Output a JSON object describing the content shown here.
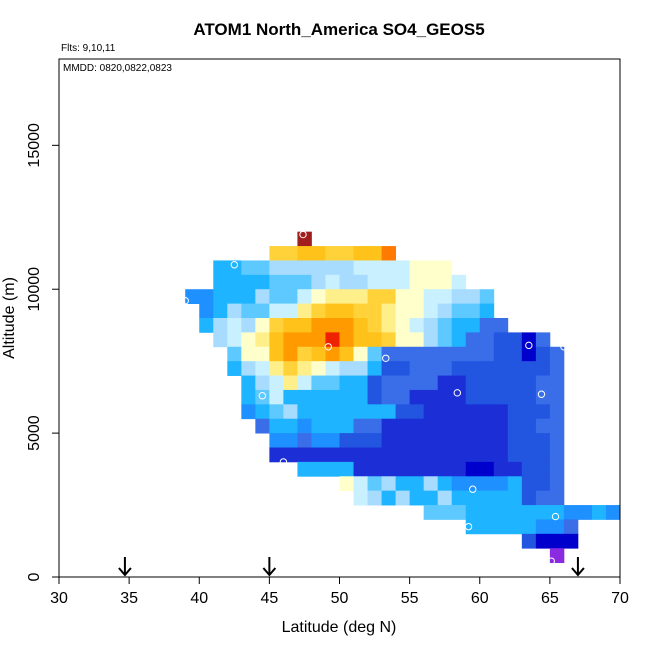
{
  "chart_data": {
    "type": "heatmap",
    "title": "ATOM1 North_America SO4_GEOS5",
    "subtitle_flights": "Flts: 9,10,11",
    "subtitle_dates": "MMDD: 0820,0822,0823",
    "xlabel": "Latitude (deg N)",
    "ylabel": "Altitude (m)",
    "xlim": [
      30,
      70
    ],
    "ylim": [
      0,
      18000
    ],
    "x_ticks": [
      30,
      35,
      40,
      45,
      50,
      55,
      60,
      65,
      70
    ],
    "x_tick_labels": [
      "30",
      "35",
      "40",
      "45",
      "50",
      "55",
      "60",
      "65",
      "70"
    ],
    "y_ticks": [
      0,
      5000,
      10000,
      15000
    ],
    "y_tick_labels": [
      "0",
      "5000",
      "10000",
      "15000"
    ],
    "cell_size": {
      "lat": 1,
      "alt": 500
    },
    "arrows_lat": [
      34.7,
      45.0,
      67.0
    ],
    "palette": {
      "purple": "#8a2be2",
      "navy": "#0000cd",
      "darkblue": "#1c2fd6",
      "blue": "#2255e0",
      "royal": "#3a6ee8",
      "azure": "#1e90ff",
      "sky": "#1eb4ff",
      "light": "#5ec9ff",
      "pale": "#a8dcff",
      "cyan": "#c8f0ff",
      "cream": "#ffffcc",
      "lyellow": "#ffef8a",
      "yellow": "#ffd23a",
      "gold": "#ffc21a",
      "orange": "#ff9a00",
      "dorange": "#ff7a00",
      "red": "#ee2200",
      "maroon": "#a01e1e"
    },
    "cells": [
      {
        "alt": 11500,
        "lat0": 47,
        "colors": [
          "maroon"
        ]
      },
      {
        "alt": 11000,
        "lat0": 45,
        "colors": [
          "yellow",
          "yellow",
          "gold",
          "gold",
          "yellow",
          "yellow",
          "gold",
          "gold",
          "dorange"
        ]
      },
      {
        "alt": 10500,
        "lat0": 41,
        "colors": [
          "sky",
          "sky",
          "light",
          "light",
          "pale",
          "pale",
          "pale",
          "pale",
          "pale",
          "pale",
          "cyan",
          "cyan",
          "cyan",
          "cyan",
          "cream",
          "cream",
          "cream"
        ]
      },
      {
        "alt": 10000,
        "lat0": 41,
        "colors": [
          "sky",
          "sky",
          "sky",
          "sky",
          "light",
          "light",
          "light",
          "pale",
          "cyan",
          "pale",
          "pale",
          "cyan",
          "cyan",
          "cyan",
          "cream",
          "cream",
          "cream",
          "cyan"
        ]
      },
      {
        "alt": 9500,
        "lat0": 39,
        "colors": [
          "azure",
          "azure",
          "sky",
          "sky",
          "sky",
          "pale",
          "light",
          "light",
          "cyan",
          "cream",
          "lyellow",
          "lyellow",
          "lyellow",
          "yellow",
          "yellow",
          "cream",
          "cream",
          "cyan",
          "cyan",
          "pale",
          "pale",
          "light"
        ]
      },
      {
        "alt": 9000,
        "lat0": 40,
        "colors": [
          "azure",
          "sky",
          "pale",
          "light",
          "light",
          "cyan",
          "cyan",
          "lyellow",
          "yellow",
          "gold",
          "gold",
          "yellow",
          "yellow",
          "lyellow",
          "cream",
          "cream",
          "cyan",
          "pale",
          "light",
          "light",
          "sky"
        ]
      },
      {
        "alt": 8500,
        "lat0": 40,
        "colors": [
          "sky",
          "pale",
          "cyan",
          "pale",
          "cream",
          "yellow",
          "gold",
          "gold",
          "orange",
          "orange",
          "orange",
          "gold",
          "yellow",
          "lyellow",
          "cream",
          "cyan",
          "pale",
          "light",
          "sky",
          "sky",
          "royal",
          "royal"
        ]
      },
      {
        "alt": 8000,
        "lat0": 41,
        "colors": [
          "pale",
          "cyan",
          "cream",
          "lyellow",
          "gold",
          "orange",
          "orange",
          "orange",
          "red",
          "orange",
          "gold",
          "gold",
          "yellow",
          "cream",
          "cream",
          "pale",
          "light",
          "sky",
          "royal",
          "royal",
          "blue",
          "blue",
          "navy",
          "royal"
        ]
      },
      {
        "alt": 7500,
        "lat0": 42,
        "colors": [
          "light",
          "cream",
          "cream",
          "gold",
          "orange",
          "yellow",
          "gold",
          "orange",
          "gold",
          "cream",
          "light",
          "royal",
          "royal",
          "royal",
          "royal",
          "royal",
          "royal",
          "royal",
          "royal",
          "blue",
          "blue",
          "navy",
          "blue",
          "royal"
        ]
      },
      {
        "alt": 7000,
        "lat0": 42,
        "colors": [
          "sky",
          "pale",
          "cyan",
          "lyellow",
          "yellow",
          "lyellow",
          "cream",
          "cyan",
          "pale",
          "pale",
          "sky",
          "blue",
          "blue",
          "royal",
          "royal",
          "royal",
          "blue",
          "blue",
          "blue",
          "blue",
          "blue",
          "blue",
          "blue",
          "royal"
        ]
      },
      {
        "alt": 6500,
        "lat0": 43,
        "colors": [
          "sky",
          "pale",
          "cyan",
          "lyellow",
          "cyan",
          "light",
          "light",
          "sky",
          "sky",
          "blue",
          "royal",
          "royal",
          "royal",
          "royal",
          "darkblue",
          "darkblue",
          "blue",
          "blue",
          "blue",
          "blue",
          "blue",
          "royal",
          "royal"
        ]
      },
      {
        "alt": 6000,
        "lat0": 43,
        "colors": [
          "sky",
          "light",
          "cyan",
          "sky",
          "sky",
          "sky",
          "sky",
          "sky",
          "sky",
          "blue",
          "royal",
          "royal",
          "darkblue",
          "darkblue",
          "darkblue",
          "darkblue",
          "blue",
          "blue",
          "blue",
          "blue",
          "blue",
          "royal",
          "royal"
        ]
      },
      {
        "alt": 5500,
        "lat0": 43,
        "colors": [
          "azure",
          "sky",
          "light",
          "pale",
          "sky",
          "sky",
          "sky",
          "sky",
          "sky",
          "sky",
          "sky",
          "blue",
          "blue",
          "darkblue",
          "darkblue",
          "darkblue",
          "darkblue",
          "darkblue",
          "darkblue",
          "blue",
          "blue",
          "blue",
          "royal"
        ]
      },
      {
        "alt": 5000,
        "lat0": 44,
        "colors": [
          "royal",
          "sky",
          "sky",
          "azure",
          "sky",
          "sky",
          "sky",
          "royal",
          "royal",
          "darkblue",
          "darkblue",
          "darkblue",
          "darkblue",
          "darkblue",
          "darkblue",
          "darkblue",
          "darkblue",
          "darkblue",
          "blue",
          "blue",
          "royal",
          "royal"
        ]
      },
      {
        "alt": 4500,
        "lat0": 45,
        "colors": [
          "azure",
          "azure",
          "royal",
          "azure",
          "azure",
          "blue",
          "blue",
          "blue",
          "darkblue",
          "darkblue",
          "darkblue",
          "darkblue",
          "darkblue",
          "darkblue",
          "darkblue",
          "darkblue",
          "darkblue",
          "blue",
          "blue",
          "blue",
          "royal"
        ]
      },
      {
        "alt": 4000,
        "lat0": 45,
        "colors": [
          "darkblue",
          "darkblue",
          "darkblue",
          "darkblue",
          "darkblue",
          "darkblue",
          "darkblue",
          "darkblue",
          "darkblue",
          "darkblue",
          "darkblue",
          "darkblue",
          "darkblue",
          "darkblue",
          "darkblue",
          "darkblue",
          "darkblue",
          "blue",
          "blue",
          "blue",
          "royal"
        ]
      },
      {
        "alt": 3500,
        "lat0": 47,
        "colors": [
          "sky",
          "sky",
          "sky",
          "sky",
          "darkblue",
          "darkblue",
          "darkblue",
          "darkblue",
          "darkblue",
          "darkblue",
          "darkblue",
          "darkblue",
          "navy",
          "navy",
          "darkblue",
          "darkblue",
          "blue",
          "blue",
          "royal"
        ]
      },
      {
        "alt": 3000,
        "lat0": 50,
        "colors": [
          "cream",
          "cyan",
          "light",
          "pale",
          "sky",
          "sky",
          "pale",
          "sky",
          "azure",
          "azure",
          "azure",
          "azure",
          "sky",
          "blue",
          "blue",
          "royal"
        ]
      },
      {
        "alt": 2500,
        "lat0": 51,
        "colors": [
          "cyan",
          "pale",
          "sky",
          "pale",
          "sky",
          "sky",
          "pale",
          "sky",
          "sky",
          "sky",
          "sky",
          "sky",
          "blue",
          "royal",
          "royal"
        ]
      },
      {
        "alt": 2000,
        "lat0": 56,
        "colors": [
          "light",
          "light",
          "light",
          "sky",
          "sky",
          "sky",
          "sky",
          "sky",
          "sky",
          "sky",
          "azure",
          "azure",
          "sky",
          "azure"
        ]
      },
      {
        "alt": 1500,
        "lat0": 59,
        "colors": [
          "sky",
          "sky",
          "sky",
          "sky",
          "sky",
          "azure",
          "azure",
          "royal"
        ]
      },
      {
        "alt": 1000,
        "lat0": 63,
        "colors": [
          "blue",
          "navy",
          "navy",
          "navy"
        ]
      },
      {
        "alt": 500,
        "lat0": 65,
        "colors": [
          "purple"
        ]
      }
    ],
    "markers": [
      [
        47.4,
        11900
      ],
      [
        42.5,
        10850
      ],
      [
        39.0,
        9600
      ],
      [
        49.2,
        8000
      ],
      [
        53.3,
        7600
      ],
      [
        63.5,
        8050
      ],
      [
        66.0,
        8000
      ],
      [
        44.5,
        6300
      ],
      [
        58.4,
        6400
      ],
      [
        64.4,
        6350
      ],
      [
        46.0,
        4000
      ],
      [
        59.5,
        3050
      ],
      [
        59.2,
        1750
      ],
      [
        65.4,
        2100
      ],
      [
        65.1,
        550
      ]
    ]
  }
}
